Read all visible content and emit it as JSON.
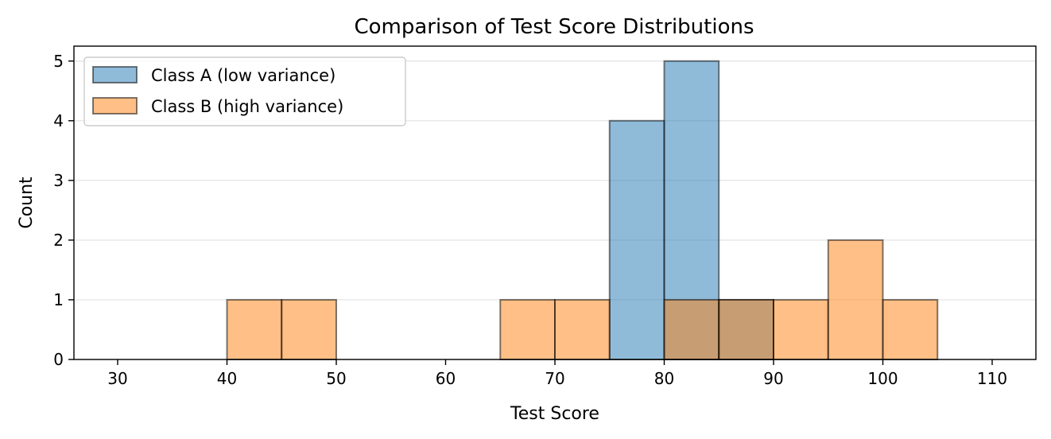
{
  "chart_data": {
    "type": "bar",
    "title": "Comparison of Test Score Distributions",
    "xlabel": "Test Score",
    "ylabel": "Count",
    "xlim": [
      26,
      114
    ],
    "ylim": [
      0,
      5.25
    ],
    "xticks": [
      30,
      40,
      50,
      60,
      70,
      80,
      90,
      100,
      110
    ],
    "yticks": [
      0,
      1,
      2,
      3,
      4,
      5
    ],
    "grid": "horizontal",
    "legend_position": "top-left",
    "series": [
      {
        "name": "Class A (low variance)",
        "color": "#1f77b4",
        "bins": [
          {
            "start": 75,
            "end": 80,
            "count": 4
          },
          {
            "start": 80,
            "end": 85,
            "count": 5
          },
          {
            "start": 85,
            "end": 90,
            "count": 1
          }
        ]
      },
      {
        "name": "Class B (high variance)",
        "color": "#ff7f0e",
        "bins": [
          {
            "start": 40,
            "end": 45,
            "count": 1
          },
          {
            "start": 45,
            "end": 50,
            "count": 1
          },
          {
            "start": 65,
            "end": 70,
            "count": 1
          },
          {
            "start": 70,
            "end": 75,
            "count": 1
          },
          {
            "start": 80,
            "end": 85,
            "count": 1
          },
          {
            "start": 85,
            "end": 90,
            "count": 1
          },
          {
            "start": 90,
            "end": 95,
            "count": 1
          },
          {
            "start": 95,
            "end": 100,
            "count": 2
          },
          {
            "start": 100,
            "end": 105,
            "count": 1
          }
        ]
      }
    ]
  }
}
